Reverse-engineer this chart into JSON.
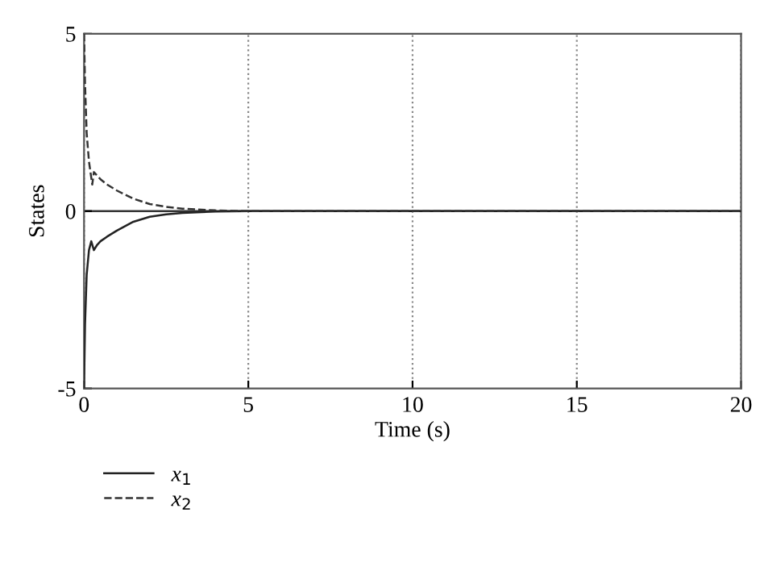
{
  "chart_data": {
    "type": "line",
    "xlabel": "Time (s)",
    "ylabel": "States",
    "xlim": [
      0,
      20
    ],
    "xticks": [
      0,
      5,
      10,
      15,
      20
    ],
    "ylim": [
      -5,
      5
    ],
    "yticks": [
      -5,
      0,
      5
    ],
    "grid": "x",
    "legend": "bottom left",
    "ref_lines": [
      {
        "axis": "y",
        "value": 0,
        "color": "#333333",
        "line_style": "solid"
      }
    ],
    "series": [
      {
        "name": "x$_{1}$",
        "color": "#222222",
        "line_style": "solid",
        "x": [
          0,
          0.03,
          0.08,
          0.15,
          0.22,
          0.3,
          0.4,
          0.5,
          0.7,
          1,
          1.5,
          2,
          2.5,
          3,
          4,
          5,
          20
        ],
        "values": [
          -5,
          -3.2,
          -1.8,
          -1.1,
          -0.85,
          -1.1,
          -0.95,
          -0.85,
          -0.72,
          -0.55,
          -0.3,
          -0.16,
          -0.09,
          -0.05,
          -0.01,
          0,
          0
        ]
      },
      {
        "name": "x$_{2}$",
        "color": "#333333",
        "line_style": "dashed",
        "x": [
          0,
          0.03,
          0.08,
          0.15,
          0.25,
          0.3,
          0.4,
          0.5,
          0.7,
          1,
          1.5,
          2,
          2.5,
          3,
          4,
          5,
          20
        ],
        "values": [
          5,
          3.6,
          2.2,
          1.4,
          0.75,
          1.1,
          1.0,
          0.9,
          0.75,
          0.58,
          0.35,
          0.2,
          0.12,
          0.07,
          0.02,
          0,
          0
        ]
      }
    ]
  }
}
